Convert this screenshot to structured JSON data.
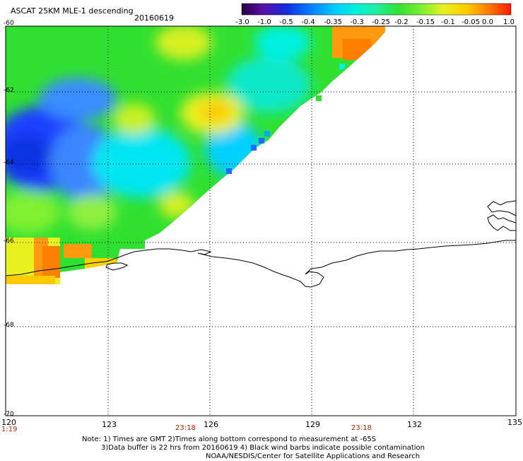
{
  "header": {
    "product": "ASCAT 25KM MLE-1 descending",
    "date": "20160619"
  },
  "colorbar": {
    "labels": [
      "-3.0",
      "-1.0",
      "-0.5",
      "-0.4",
      "-0.35",
      "-0.3",
      "-0.25",
      "-0.2",
      "-0.15",
      "-0.1",
      "-0.05",
      "0.0",
      "1.0"
    ],
    "stops": [
      "#2a0040",
      "#5a10a8",
      "#1030e0",
      "#0a78ff",
      "#00c8ff",
      "#00f0e0",
      "#20f0a0",
      "#30e030",
      "#80f030",
      "#e8f020",
      "#ffc800",
      "#ff7800",
      "#ff1a00"
    ]
  },
  "axes": {
    "lat_labels": [
      "-60",
      "-62",
      "-64",
      "-66",
      "-68",
      "-70"
    ],
    "lon_labels": [
      "120",
      "123",
      "126",
      "129",
      "132",
      "135"
    ]
  },
  "times": [
    "1:19",
    "23:18",
    "23:18"
  ],
  "notes": {
    "line1": "Note: 1) Times are GMT 2)Times along bottom correspond to measurement at -65S",
    "line2": "3)Data buffer is 22 hrs from 20160619 4) Black wind barbs indicate possible contamination",
    "line3": "NOAA/NESDIS/Center for Satellite Applications and Research"
  },
  "field_samples": [
    {
      "lon": 124.6,
      "lat": -61.8,
      "value": -0.15
    },
    {
      "lon": 126.1,
      "lat": -62.6,
      "value": -0.05
    },
    {
      "lon": 121.0,
      "lat": -63.6,
      "value": -0.4
    },
    {
      "lon": 130.1,
      "lat": -60.6,
      "value": 0.0
    },
    {
      "lon": 120.8,
      "lat": -66.5,
      "value": -0.05
    }
  ]
}
